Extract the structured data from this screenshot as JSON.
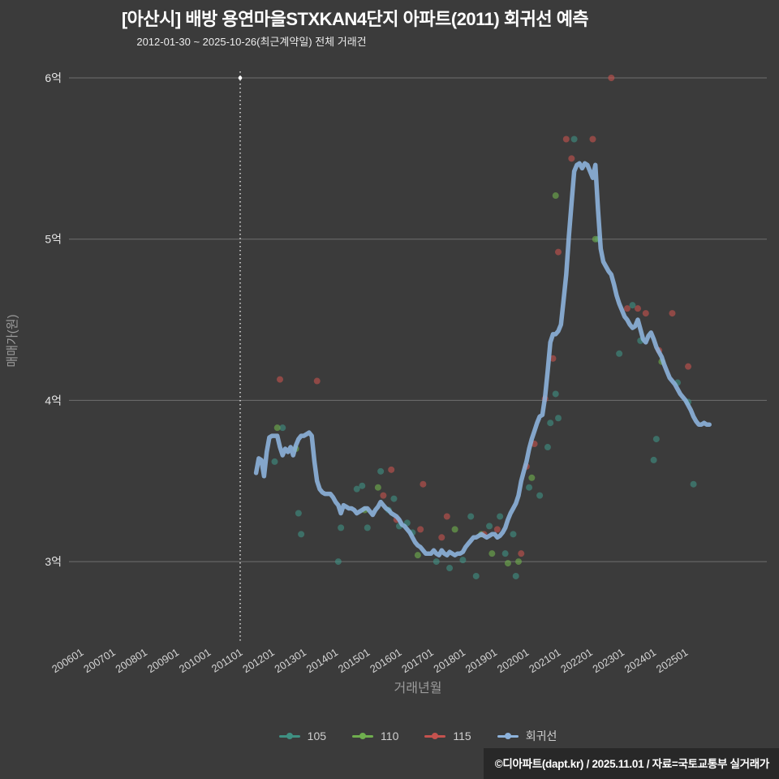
{
  "title": "[아산시] 배방 용연마을STXKAN4단지 아파트(2011) 회귀선 예측",
  "subtitle": "2012-01-30 ~ 2025-10-26(최근계약일) 전체 거래건",
  "footer": "©디아파트(dapt.kr) / 2025.11.01 / 자료=국토교통부 실거래가",
  "axes": {
    "y_label": "매매가(원)",
    "x_label": "거래년월"
  },
  "chart_data": {
    "type": "scatter",
    "title": "[아산시] 배방 용연마을STXKAN4단지 아파트(2011) 회귀선 예측",
    "xlabel": "거래년월",
    "ylabel": "매매가(원)",
    "unit": "억원",
    "ylim": [
      2.5,
      6.1
    ],
    "grid": "horizontal",
    "legend_position": "bottom",
    "y_ticks": [
      {
        "value": 3,
        "label": "3억"
      },
      {
        "value": 4,
        "label": "4억"
      },
      {
        "value": 5,
        "label": "5억"
      },
      {
        "value": 6,
        "label": "6억"
      }
    ],
    "x_ticks": [
      "200601",
      "200701",
      "200801",
      "200901",
      "201001",
      "201101",
      "201201",
      "201301",
      "201401",
      "201501",
      "201601",
      "201701",
      "201801",
      "201901",
      "202001",
      "202101",
      "202201",
      "202301",
      "202401",
      "202501"
    ],
    "reference_line": {
      "x": "201101"
    },
    "series": [
      {
        "name": "105",
        "type": "scatter",
        "color": "#3f9082",
        "points": [
          [
            "201202",
            3.62
          ],
          [
            "201205",
            3.83
          ],
          [
            "201211",
            3.3
          ],
          [
            "201212",
            3.17
          ],
          [
            "201402",
            3.0
          ],
          [
            "201403",
            3.21
          ],
          [
            "201409",
            3.45
          ],
          [
            "201411",
            3.47
          ],
          [
            "201501",
            3.21
          ],
          [
            "201506",
            3.56
          ],
          [
            "201509",
            3.32
          ],
          [
            "201511",
            3.39
          ],
          [
            "201601",
            3.22
          ],
          [
            "201604",
            3.24
          ],
          [
            "201606",
            3.18
          ],
          [
            "201703",
            3.0
          ],
          [
            "201708",
            2.96
          ],
          [
            "201801",
            3.01
          ],
          [
            "201804",
            3.28
          ],
          [
            "201806",
            2.91
          ],
          [
            "201811",
            3.22
          ],
          [
            "201903",
            3.28
          ],
          [
            "201905",
            3.05
          ],
          [
            "201908",
            3.17
          ],
          [
            "201909",
            2.91
          ],
          [
            "202002",
            3.46
          ],
          [
            "202006",
            3.41
          ],
          [
            "202009",
            3.71
          ],
          [
            "202010",
            3.86
          ],
          [
            "202012",
            4.04
          ],
          [
            "202101",
            3.89
          ],
          [
            "202107",
            5.62
          ],
          [
            "202204",
            5.0
          ],
          [
            "202212",
            4.29
          ],
          [
            "202305",
            4.59
          ],
          [
            "202308",
            4.37
          ],
          [
            "202401",
            3.63
          ],
          [
            "202402",
            3.76
          ],
          [
            "202410",
            4.11
          ],
          [
            "202502",
            3.99
          ],
          [
            "202504",
            3.48
          ]
        ]
      },
      {
        "name": "110",
        "type": "scatter",
        "color": "#6fae4e",
        "points": [
          [
            "201203",
            3.83
          ],
          [
            "201210",
            3.7
          ],
          [
            "201412",
            3.32
          ],
          [
            "201505",
            3.46
          ],
          [
            "201608",
            3.04
          ],
          [
            "201710",
            3.2
          ],
          [
            "201808",
            3.17
          ],
          [
            "201812",
            3.05
          ],
          [
            "201906",
            2.99
          ],
          [
            "201910",
            3.0
          ],
          [
            "202003",
            3.52
          ],
          [
            "202012",
            5.27
          ],
          [
            "202203",
            5.0
          ],
          [
            "202404",
            4.24
          ]
        ]
      },
      {
        "name": "115",
        "type": "scatter",
        "color": "#c4524e",
        "points": [
          [
            "201204",
            4.13
          ],
          [
            "201306",
            4.12
          ],
          [
            "201507",
            3.41
          ],
          [
            "201510",
            3.57
          ],
          [
            "201512",
            3.26
          ],
          [
            "201609",
            3.2
          ],
          [
            "201610",
            3.48
          ],
          [
            "201705",
            3.15
          ],
          [
            "201707",
            3.28
          ],
          [
            "201809",
            3.17
          ],
          [
            "201902",
            3.2
          ],
          [
            "201911",
            3.05
          ],
          [
            "202001",
            3.59
          ],
          [
            "202004",
            3.73
          ],
          [
            "202008",
            4.01
          ],
          [
            "202011",
            4.26
          ],
          [
            "202101",
            4.92
          ],
          [
            "202104",
            5.62
          ],
          [
            "202106",
            5.5
          ],
          [
            "202202",
            5.62
          ],
          [
            "202209",
            6.0
          ],
          [
            "202303",
            4.57
          ],
          [
            "202307",
            4.57
          ],
          [
            "202310",
            4.54
          ],
          [
            "202403",
            4.31
          ],
          [
            "202408",
            4.54
          ],
          [
            "202502",
            4.21
          ]
        ]
      },
      {
        "name": "회귀선",
        "type": "line",
        "color": "#8db3dc",
        "points": [
          [
            "201107",
            3.55
          ],
          [
            "201108",
            3.64
          ],
          [
            "201109",
            3.63
          ],
          [
            "201110",
            3.53
          ],
          [
            "201111",
            3.68
          ],
          [
            "201112",
            3.77
          ],
          [
            "201201",
            3.78
          ],
          [
            "201202",
            3.78
          ],
          [
            "201203",
            3.78
          ],
          [
            "201204",
            3.71
          ],
          [
            "201205",
            3.66
          ],
          [
            "201206",
            3.7
          ],
          [
            "201207",
            3.68
          ],
          [
            "201208",
            3.71
          ],
          [
            "201209",
            3.66
          ],
          [
            "201210",
            3.72
          ],
          [
            "201211",
            3.76
          ],
          [
            "201212",
            3.78
          ],
          [
            "201301",
            3.78
          ],
          [
            "201302",
            3.79
          ],
          [
            "201303",
            3.8
          ],
          [
            "201304",
            3.78
          ],
          [
            "201305",
            3.62
          ],
          [
            "201306",
            3.5
          ],
          [
            "201307",
            3.45
          ],
          [
            "201308",
            3.43
          ],
          [
            "201309",
            3.42
          ],
          [
            "201310",
            3.42
          ],
          [
            "201311",
            3.42
          ],
          [
            "201312",
            3.4
          ],
          [
            "201401",
            3.37
          ],
          [
            "201402",
            3.35
          ],
          [
            "201403",
            3.3
          ],
          [
            "201404",
            3.35
          ],
          [
            "201405",
            3.34
          ],
          [
            "201406",
            3.33
          ],
          [
            "201407",
            3.33
          ],
          [
            "201408",
            3.32
          ],
          [
            "201409",
            3.3
          ],
          [
            "201410",
            3.31
          ],
          [
            "201411",
            3.32
          ],
          [
            "201412",
            3.33
          ],
          [
            "201501",
            3.33
          ],
          [
            "201502",
            3.31
          ],
          [
            "201503",
            3.29
          ],
          [
            "201504",
            3.32
          ],
          [
            "201505",
            3.34
          ],
          [
            "201506",
            3.37
          ],
          [
            "201507",
            3.35
          ],
          [
            "201508",
            3.33
          ],
          [
            "201509",
            3.32
          ],
          [
            "201510",
            3.3
          ],
          [
            "201511",
            3.29
          ],
          [
            "201512",
            3.28
          ],
          [
            "201601",
            3.26
          ],
          [
            "201602",
            3.23
          ],
          [
            "201603",
            3.22
          ],
          [
            "201604",
            3.2
          ],
          [
            "201605",
            3.18
          ],
          [
            "201606",
            3.15
          ],
          [
            "201607",
            3.12
          ],
          [
            "201608",
            3.1
          ],
          [
            "201609",
            3.09
          ],
          [
            "201610",
            3.07
          ],
          [
            "201611",
            3.05
          ],
          [
            "201612",
            3.05
          ],
          [
            "201701",
            3.05
          ],
          [
            "201702",
            3.07
          ],
          [
            "201703",
            3.05
          ],
          [
            "201704",
            3.04
          ],
          [
            "201705",
            3.07
          ],
          [
            "201706",
            3.05
          ],
          [
            "201707",
            3.04
          ],
          [
            "201708",
            3.06
          ],
          [
            "201709",
            3.05
          ],
          [
            "201710",
            3.04
          ],
          [
            "201711",
            3.05
          ],
          [
            "201712",
            3.05
          ],
          [
            "201801",
            3.06
          ],
          [
            "201802",
            3.09
          ],
          [
            "201803",
            3.11
          ],
          [
            "201804",
            3.13
          ],
          [
            "201805",
            3.15
          ],
          [
            "201806",
            3.15
          ],
          [
            "201807",
            3.16
          ],
          [
            "201808",
            3.17
          ],
          [
            "201809",
            3.16
          ],
          [
            "201810",
            3.15
          ],
          [
            "201811",
            3.16
          ],
          [
            "201812",
            3.17
          ],
          [
            "201901",
            3.17
          ],
          [
            "201902",
            3.15
          ],
          [
            "201903",
            3.16
          ],
          [
            "201904",
            3.18
          ],
          [
            "201905",
            3.21
          ],
          [
            "201906",
            3.26
          ],
          [
            "201907",
            3.3
          ],
          [
            "201908",
            3.33
          ],
          [
            "201909",
            3.36
          ],
          [
            "201910",
            3.41
          ],
          [
            "201911",
            3.5
          ],
          [
            "201912",
            3.56
          ],
          [
            "202001",
            3.62
          ],
          [
            "202002",
            3.7
          ],
          [
            "202003",
            3.76
          ],
          [
            "202004",
            3.81
          ],
          [
            "202005",
            3.86
          ],
          [
            "202006",
            3.9
          ],
          [
            "202007",
            3.91
          ],
          [
            "202008",
            4.02
          ],
          [
            "202009",
            4.18
          ],
          [
            "202010",
            4.36
          ],
          [
            "202011",
            4.41
          ],
          [
            "202012",
            4.41
          ],
          [
            "202101",
            4.43
          ],
          [
            "202102",
            4.47
          ],
          [
            "202103",
            4.62
          ],
          [
            "202104",
            4.78
          ],
          [
            "202105",
            5.02
          ],
          [
            "202106",
            5.22
          ],
          [
            "202107",
            5.42
          ],
          [
            "202108",
            5.46
          ],
          [
            "202109",
            5.47
          ],
          [
            "202110",
            5.44
          ],
          [
            "202111",
            5.47
          ],
          [
            "202112",
            5.46
          ],
          [
            "202201",
            5.42
          ],
          [
            "202202",
            5.38
          ],
          [
            "202203",
            5.46
          ],
          [
            "202204",
            5.18
          ],
          [
            "202205",
            4.94
          ],
          [
            "202206",
            4.86
          ],
          [
            "202207",
            4.83
          ],
          [
            "202208",
            4.8
          ],
          [
            "202209",
            4.78
          ],
          [
            "202210",
            4.72
          ],
          [
            "202211",
            4.65
          ],
          [
            "202212",
            4.6
          ],
          [
            "202301",
            4.56
          ],
          [
            "202302",
            4.52
          ],
          [
            "202303",
            4.5
          ],
          [
            "202304",
            4.47
          ],
          [
            "202305",
            4.45
          ],
          [
            "202306",
            4.46
          ],
          [
            "202307",
            4.5
          ],
          [
            "202308",
            4.44
          ],
          [
            "202309",
            4.38
          ],
          [
            "202310",
            4.36
          ],
          [
            "202311",
            4.4
          ],
          [
            "202312",
            4.42
          ],
          [
            "202401",
            4.38
          ],
          [
            "202402",
            4.33
          ],
          [
            "202403",
            4.3
          ],
          [
            "202404",
            4.27
          ],
          [
            "202405",
            4.22
          ],
          [
            "202406",
            4.18
          ],
          [
            "202407",
            4.14
          ],
          [
            "202408",
            4.12
          ],
          [
            "202409",
            4.1
          ],
          [
            "202410",
            4.07
          ],
          [
            "202411",
            4.04
          ],
          [
            "202412",
            4.02
          ],
          [
            "202501",
            4.0
          ],
          [
            "202502",
            3.97
          ],
          [
            "202503",
            3.94
          ],
          [
            "202504",
            3.9
          ],
          [
            "202505",
            3.87
          ],
          [
            "202506",
            3.85
          ],
          [
            "202507",
            3.85
          ],
          [
            "202508",
            3.86
          ],
          [
            "202509",
            3.85
          ],
          [
            "202510",
            3.85
          ]
        ]
      }
    ]
  }
}
